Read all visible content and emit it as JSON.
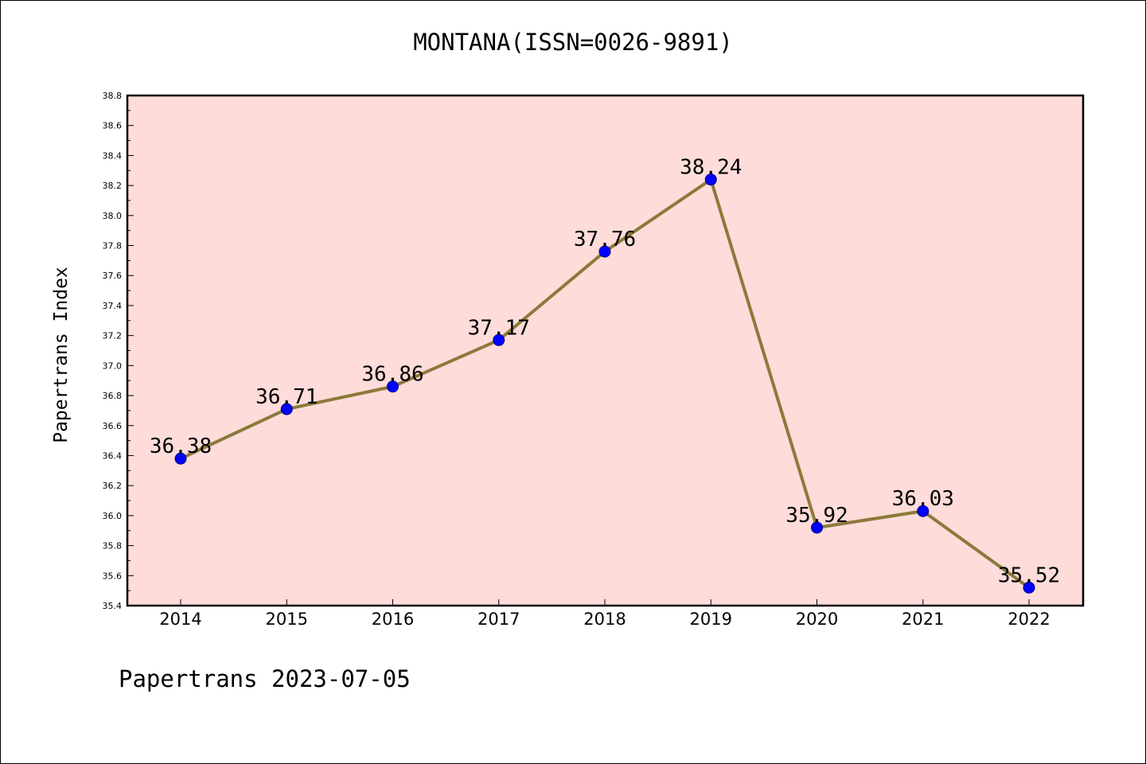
{
  "chart_data": {
    "type": "line",
    "title": "MONTANA(ISSN=0026-9891)",
    "ylabel": "Papertrans Index",
    "xlabel": "",
    "footer": "Papertrans 2023-07-05",
    "categories": [
      "2014",
      "2015",
      "2016",
      "2017",
      "2018",
      "2019",
      "2020",
      "2021",
      "2022"
    ],
    "values": [
      36.38,
      36.71,
      36.86,
      37.17,
      37.76,
      38.24,
      35.92,
      36.03,
      35.52
    ],
    "data_labels": [
      "36.38",
      "36.71",
      "36.86",
      "37.17",
      "37.76",
      "38.24",
      "35.92",
      "36.03",
      "35.52"
    ],
    "ylim": [
      35.4,
      38.8
    ],
    "yticks": [
      "35.4",
      "35.6",
      "35.8",
      "36.0",
      "36.2",
      "36.4",
      "36.6",
      "36.8",
      "37.0",
      "37.2",
      "37.4",
      "37.6",
      "37.8",
      "38.0",
      "38.2",
      "38.4",
      "38.6",
      "38.8"
    ],
    "grid": false,
    "legend": "none",
    "colors": {
      "plot_background": "#fddcda",
      "line": "#8b7a3a",
      "marker": "#0000ff",
      "marker_edge": "#000080"
    }
  }
}
